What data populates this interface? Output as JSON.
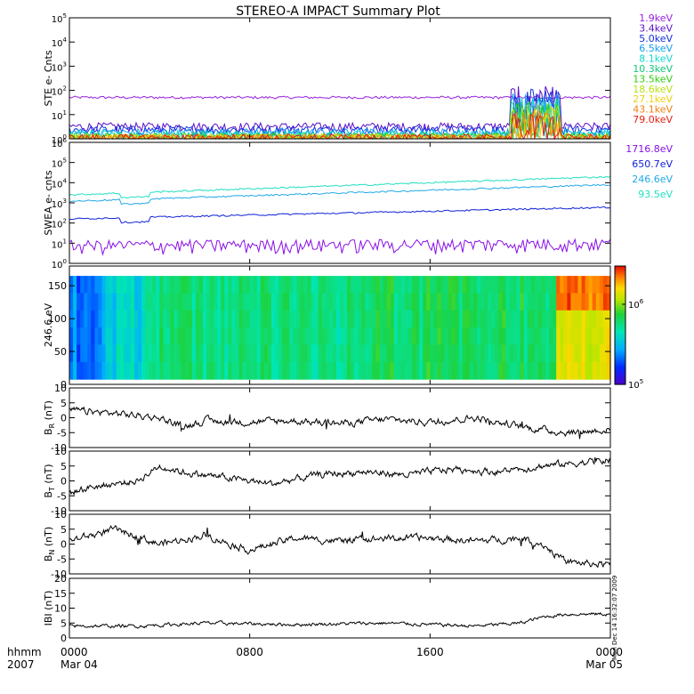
{
  "title": "STEREO-A IMPACT Summary Plot",
  "chart_data": [
    {
      "type": "line",
      "panel": "ste",
      "ylabel": "STE e- Cnts",
      "yscale": "log",
      "ylim": [
        1,
        100000
      ],
      "yticks": [
        {
          "base": "10",
          "exp": "0"
        },
        {
          "base": "10",
          "exp": "1"
        },
        {
          "base": "10",
          "exp": "2"
        },
        {
          "base": "10",
          "exp": "3"
        },
        {
          "base": "10",
          "exp": "4"
        },
        {
          "base": "10",
          "exp": "5"
        }
      ],
      "legend_placement": "right",
      "series": [
        {
          "name": "1.9keV",
          "color": "#9a20e0",
          "level": 50
        },
        {
          "name": "3.4keV",
          "color": "#5a10c8",
          "level": 3
        },
        {
          "name": "5.0keV",
          "color": "#1030e0",
          "level": 2.2
        },
        {
          "name": "6.5keV",
          "color": "#10a0f0",
          "level": 1.7
        },
        {
          "name": "8.1keV",
          "color": "#10d8d0",
          "level": 1.4
        },
        {
          "name": "10.3keV",
          "color": "#10c878",
          "level": 1.2
        },
        {
          "name": "13.5keV",
          "color": "#30d010",
          "level": 1.1
        },
        {
          "name": "18.6keV",
          "color": "#b8e010",
          "level": 1.05
        },
        {
          "name": "27.1keV",
          "color": "#f0d010",
          "level": 1.02
        },
        {
          "name": "43.1keV",
          "color": "#f08010",
          "level": 1.01
        },
        {
          "name": "79.0keV",
          "color": "#e02010",
          "level": 1.0
        }
      ],
      "event": {
        "start_hour": 19.6,
        "end_hour": 21.8,
        "peak": 200
      }
    },
    {
      "type": "line",
      "panel": "swea",
      "ylabel": "SWEA e- cnts",
      "yscale": "log",
      "ylim": [
        1,
        1000000
      ],
      "yticks": [
        {
          "base": "10",
          "exp": "0"
        },
        {
          "base": "10",
          "exp": "1"
        },
        {
          "base": "10",
          "exp": "2"
        },
        {
          "base": "10",
          "exp": "3"
        },
        {
          "base": "10",
          "exp": "4"
        },
        {
          "base": "10",
          "exp": "5"
        },
        {
          "base": "10",
          "exp": "6"
        }
      ],
      "legend_placement": "right",
      "series": [
        {
          "name": "1716.8eV",
          "color": "#8a10e8",
          "start": 8,
          "end": 10
        },
        {
          "name": "650.7eV",
          "color": "#1020d8",
          "start": 160,
          "end": 600
        },
        {
          "name": "246.6eV",
          "color": "#20a8e8",
          "start": 1200,
          "end": 8000
        },
        {
          "name": "93.5eV",
          "color": "#20e0c0",
          "start": 2500,
          "end": 20000
        }
      ]
    },
    {
      "type": "heatmap",
      "panel": "pad",
      "ylabel": "246.6 eV",
      "ylim": [
        0,
        180
      ],
      "yticks": [
        "0",
        "50",
        "100",
        "150"
      ],
      "colorbar": {
        "ticks": [
          {
            "base": "10",
            "exp": "6"
          },
          {
            "base": "10",
            "exp": "5"
          }
        ],
        "range": [
          100000,
          3000000
        ],
        "scale": "log"
      }
    },
    {
      "type": "line",
      "panel": "br",
      "ylabel": "B_R (nT)",
      "ylim": [
        -10,
        10
      ],
      "yticks": [
        "10",
        "5",
        "0",
        "-5",
        "-10"
      ],
      "series": [
        {
          "name": "",
          "color": "#000000",
          "profile": [
            [
              0,
              2.5
            ],
            [
              2,
              1.5
            ],
            [
              4,
              0
            ],
            [
              5,
              -3
            ],
            [
              6,
              -1
            ],
            [
              8,
              -1.5
            ],
            [
              10,
              -1
            ],
            [
              12,
              -2
            ],
            [
              14,
              -0.5
            ],
            [
              16,
              -1.5
            ],
            [
              18,
              0
            ],
            [
              20,
              -3
            ],
            [
              22,
              -5
            ],
            [
              24,
              -4
            ]
          ]
        }
      ]
    },
    {
      "type": "line",
      "panel": "bt",
      "ylabel": "B_T (nT)",
      "ylim": [
        -10,
        10
      ],
      "yticks": [
        "10",
        "5",
        "0",
        "-5",
        "-10"
      ],
      "series": [
        {
          "name": "",
          "color": "#000000",
          "profile": [
            [
              0,
              -4
            ],
            [
              1,
              -2
            ],
            [
              3,
              0
            ],
            [
              4,
              5
            ],
            [
              5,
              3
            ],
            [
              7,
              1
            ],
            [
              9,
              -1
            ],
            [
              11,
              2
            ],
            [
              13,
              3
            ],
            [
              15,
              2
            ],
            [
              17,
              4
            ],
            [
              19,
              3
            ],
            [
              21,
              5
            ],
            [
              24,
              7
            ]
          ]
        }
      ]
    },
    {
      "type": "line",
      "panel": "bn",
      "ylabel": "B_N (nT)",
      "ylim": [
        -10,
        10
      ],
      "yticks": [
        "10",
        "5",
        "0",
        "-5",
        "-10"
      ],
      "series": [
        {
          "name": "",
          "color": "#000000",
          "profile": [
            [
              0,
              1
            ],
            [
              2,
              5
            ],
            [
              4,
              0
            ],
            [
              6,
              3
            ],
            [
              8,
              -2
            ],
            [
              10,
              2
            ],
            [
              12,
              1
            ],
            [
              14,
              2
            ],
            [
              16,
              2
            ],
            [
              18,
              1
            ],
            [
              20,
              2
            ],
            [
              21,
              0
            ],
            [
              22,
              -6
            ],
            [
              24,
              -7
            ]
          ]
        }
      ]
    },
    {
      "type": "line",
      "panel": "bmag",
      "ylabel": "IBI (nT)",
      "ylim": [
        0,
        20
      ],
      "yticks": [
        "20",
        "15",
        "10",
        "5",
        "0"
      ],
      "series": [
        {
          "name": "",
          "color": "#000000",
          "profile": [
            [
              0,
              4
            ],
            [
              3,
              4
            ],
            [
              6,
              5
            ],
            [
              10,
              4.5
            ],
            [
              14,
              5
            ],
            [
              18,
              4
            ],
            [
              20,
              5
            ],
            [
              21,
              7
            ],
            [
              22,
              8
            ],
            [
              24,
              8
            ]
          ]
        }
      ]
    }
  ],
  "x_axis": {
    "row1_label": "hhmm",
    "row2_label": "2007",
    "ticks": [
      {
        "time": "0000",
        "date": "Mar 04",
        "hour": 0
      },
      {
        "time": "0800",
        "date": "",
        "hour": 8
      },
      {
        "time": "1600",
        "date": "",
        "hour": 16
      },
      {
        "time": "0000",
        "date": "Mar 05",
        "hour": 24
      }
    ]
  },
  "timestamp": "Mon Dec 14 16:32:07 2009"
}
